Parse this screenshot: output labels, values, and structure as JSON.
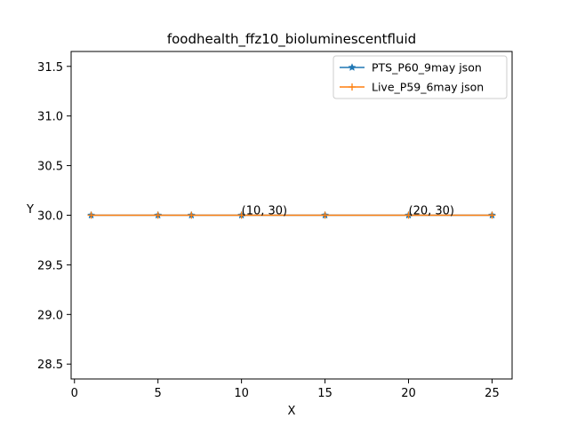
{
  "chart_data": {
    "type": "line",
    "title": "foodhealth_ffz10_bioluminescentfluid",
    "xlabel": "X",
    "ylabel": "Y",
    "xlim": [
      -0.2,
      26.2
    ],
    "ylim": [
      28.35,
      31.65
    ],
    "xticks": [
      0,
      5,
      10,
      15,
      20,
      25
    ],
    "yticks": [
      28.5,
      29.0,
      29.5,
      30.0,
      30.5,
      31.0,
      31.5
    ],
    "ytick_labels": [
      "28.5",
      "29.0",
      "29.5",
      "30.0",
      "30.5",
      "31.0",
      "31.5"
    ],
    "grid": false,
    "legend_position": "top-right",
    "series": [
      {
        "name": "PTS_P60_9may json",
        "color": "#1f77b4",
        "marker": "star",
        "x": [
          1,
          5,
          7,
          10,
          15,
          20,
          25
        ],
        "y": [
          30,
          30,
          30,
          30,
          30,
          30,
          30
        ]
      },
      {
        "name": "Live_P59_6may json",
        "color": "#ff7f0e",
        "marker": "plus",
        "x": [
          1,
          5,
          7,
          10,
          15,
          20,
          25
        ],
        "y": [
          30,
          30,
          30,
          30,
          30,
          30,
          30
        ]
      }
    ],
    "annotations": [
      {
        "text": "(10, 30)",
        "x": 10,
        "y": 30
      },
      {
        "text": "(20, 30)",
        "x": 20,
        "y": 30
      }
    ]
  }
}
